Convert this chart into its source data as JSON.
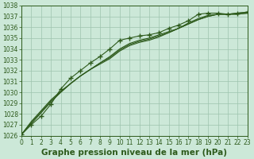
{
  "x": [
    0,
    1,
    2,
    3,
    4,
    5,
    6,
    7,
    8,
    9,
    10,
    11,
    12,
    13,
    14,
    15,
    16,
    17,
    18,
    19,
    20,
    21,
    22,
    23
  ],
  "line_marker": [
    1026.1,
    1027.0,
    1027.8,
    1028.9,
    1030.3,
    1031.3,
    1032.0,
    1032.7,
    1033.3,
    1034.0,
    1034.8,
    1035.0,
    1035.2,
    1035.3,
    1035.5,
    1035.9,
    1036.2,
    1036.6,
    1037.2,
    1037.3,
    1037.3,
    1037.2,
    1037.3,
    1037.4
  ],
  "line2": [
    1026.1,
    1027.1,
    1028.1,
    1029.1,
    1030.0,
    1030.8,
    1031.5,
    1032.1,
    1032.7,
    1033.3,
    1034.0,
    1034.5,
    1034.8,
    1035.0,
    1035.3,
    1035.6,
    1035.9,
    1036.3,
    1036.7,
    1037.0,
    1037.2,
    1037.2,
    1037.2,
    1037.3
  ],
  "line3": [
    1026.1,
    1027.2,
    1028.2,
    1029.2,
    1030.0,
    1030.8,
    1031.5,
    1032.1,
    1032.7,
    1033.2,
    1033.9,
    1034.4,
    1034.7,
    1034.9,
    1035.2,
    1035.5,
    1035.9,
    1036.3,
    1036.7,
    1037.0,
    1037.2,
    1037.2,
    1037.2,
    1037.3
  ],
  "line4": [
    1026.1,
    1027.3,
    1028.3,
    1029.3,
    1030.1,
    1030.8,
    1031.5,
    1032.1,
    1032.6,
    1033.1,
    1033.8,
    1034.3,
    1034.6,
    1034.8,
    1035.1,
    1035.5,
    1035.9,
    1036.4,
    1036.8,
    1037.1,
    1037.2,
    1037.2,
    1037.3,
    1037.4
  ],
  "ylim": [
    1026,
    1038
  ],
  "yticks": [
    1026,
    1027,
    1028,
    1029,
    1030,
    1031,
    1032,
    1033,
    1034,
    1035,
    1036,
    1037,
    1038
  ],
  "xticks": [
    0,
    1,
    2,
    3,
    4,
    5,
    6,
    7,
    8,
    9,
    10,
    11,
    12,
    13,
    14,
    15,
    16,
    17,
    18,
    19,
    20,
    21,
    22,
    23
  ],
  "xlabel": "Graphe pression niveau de la mer (hPa)",
  "line_color": "#2d5a1b",
  "bg_color": "#cce8d8",
  "grid_color": "#9ec4ae",
  "tick_fontsize": 5.5,
  "xlabel_fontsize": 7.5
}
